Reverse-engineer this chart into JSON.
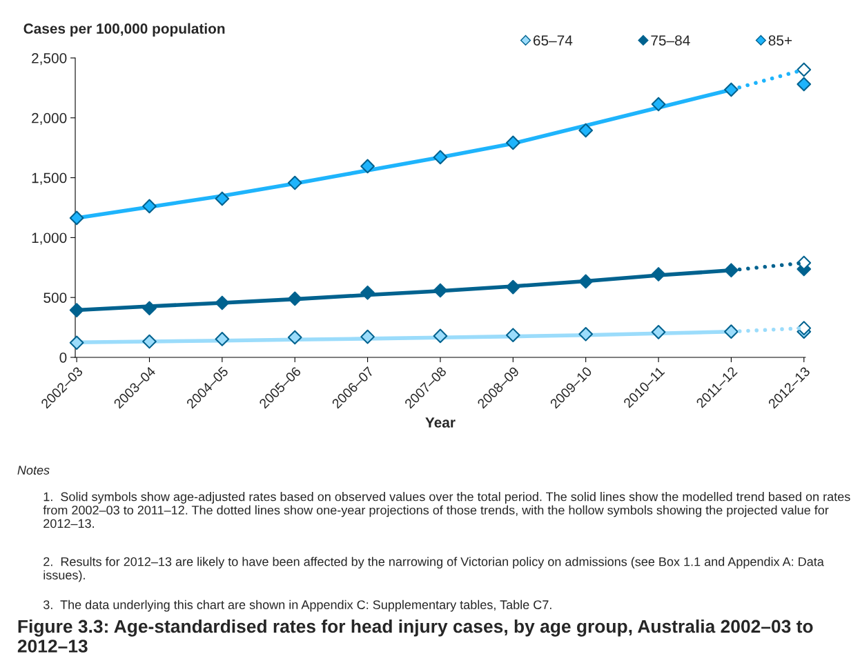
{
  "chart_data": {
    "type": "line",
    "title": "Figure 3.3: Age-standardised rates for head injury cases, by age group, Australia 2002–03 to 2012–13",
    "ylabel": "Cases per 100,000 population",
    "xlabel": "Year",
    "categories": [
      "2002–03",
      "2003–04",
      "2004–05",
      "2005–06",
      "2006–07",
      "2007–08",
      "2008–09",
      "2009–10",
      "2010–11",
      "2011–12",
      "2012–13"
    ],
    "ylim": [
      0,
      2500
    ],
    "yticks": [
      0,
      500,
      {
        "value": 1000,
        "label": "1,000"
      },
      {
        "value": 1500,
        "label": "1,500"
      },
      {
        "value": 2000,
        "label": "2,000"
      },
      {
        "value": 2500,
        "label": "2,500"
      }
    ],
    "grid": false,
    "legend": "top right",
    "series": [
      {
        "color": "#9bdcfb",
        "line_style": "solid",
        "marker": "none",
        "values": [
          125,
          132,
          140,
          148,
          156,
          165,
          175,
          186,
          200,
          215,
          null
        ]
      },
      {
        "color": "#9bdcfb",
        "line_style": "dotted",
        "marker": "none",
        "values": [
          null,
          null,
          null,
          null,
          null,
          null,
          null,
          null,
          null,
          215,
          244
        ]
      },
      {
        "color": "#00628f",
        "line_style": "solid",
        "marker": "none",
        "values": [
          394,
          426,
          455,
          486,
          521,
          554,
          593,
          636,
          685,
          727,
          null
        ]
      },
      {
        "color": "#00628f",
        "line_style": "dotted",
        "marker": "none",
        "values": [
          null,
          null,
          null,
          null,
          null,
          null,
          null,
          null,
          null,
          727,
          789
        ]
      },
      {
        "color": "#1eb4fc",
        "line_style": "solid",
        "marker": "none",
        "values": [
          1164,
          1256,
          1348,
          1452,
          1561,
          1671,
          1786,
          1935,
          2085,
          2235,
          null
        ]
      },
      {
        "color": "#1eb4fc",
        "line_style": "dotted",
        "marker": "none",
        "values": [
          null,
          null,
          null,
          null,
          null,
          null,
          null,
          null,
          null,
          2235,
          2402
        ]
      },
      {
        "type": "scatter",
        "name": "65–74",
        "color": "#9bdcfb",
        "marker": "diamond",
        "values": [
          122,
          132,
          153,
          167,
          172,
          179,
          186,
          194,
          211,
          215,
          215
        ]
      },
      {
        "type": "scatter",
        "name": "75–84",
        "color": "#00628f",
        "marker": "diamond",
        "values": [
          394,
          410,
          455,
          490,
          540,
          559,
          587,
          634,
          694,
          727,
          737
        ]
      },
      {
        "type": "scatter",
        "name": "85+",
        "color": "#1eb4fc",
        "marker": "diamond",
        "values": [
          1164,
          1262,
          1325,
          1457,
          1596,
          1671,
          1792,
          1895,
          2114,
          2235,
          2281
        ]
      },
      {
        "type": "scatter",
        "color": "#ffffff",
        "marker": "diamond",
        "values": [
          null,
          null,
          null,
          null,
          null,
          null,
          null,
          null,
          null,
          null,
          244
        ]
      },
      {
        "type": "scatter",
        "color": "#ffffff",
        "marker": "diamond",
        "values": [
          null,
          null,
          null,
          null,
          null,
          null,
          null,
          null,
          null,
          null,
          789
        ]
      },
      {
        "type": "scatter",
        "color": "#ffffff",
        "marker": "diamond",
        "values": [
          null,
          null,
          null,
          null,
          null,
          null,
          null,
          null,
          null,
          null,
          2402
        ]
      }
    ],
    "annotations": [
      "Notes",
      "1.  Solid symbols show age-adjusted rates based on observed values over the total period. The solid lines show the modelled trend based on rates from 2002–03 to 2011–12. The dotted lines show one-year projections of those trends, with the hollow symbols showing the projected value for 2012–13.",
      "2.  Results for 2012–13 are likely to have been affected by the narrowing of Victorian policy on admissions (see Box 1.1 and Appendix A: Data issues).",
      "3.  The data underlying this chart are shown in Appendix C: Supplementary tables, Table C7."
    ]
  }
}
